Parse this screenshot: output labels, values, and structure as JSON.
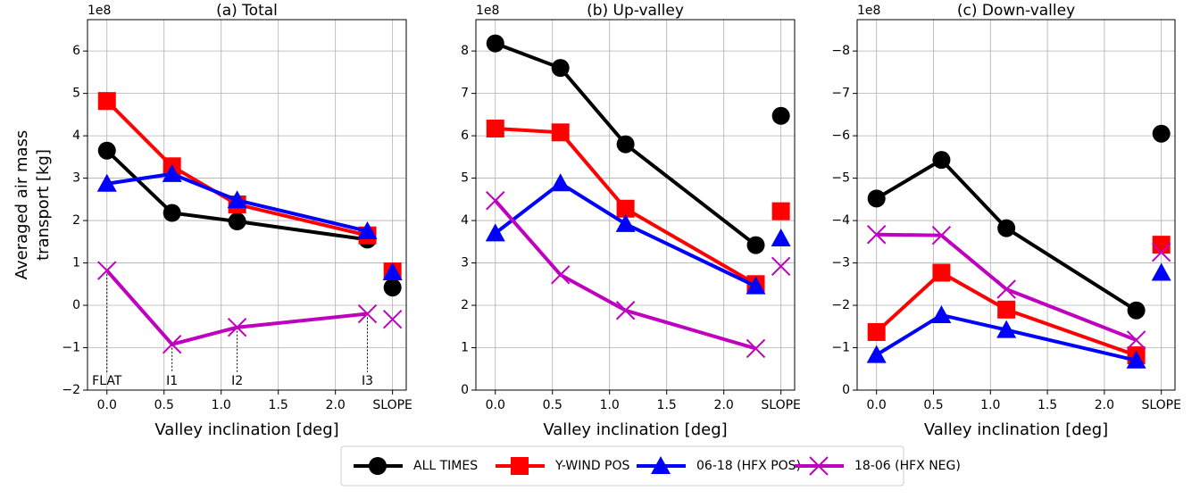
{
  "chart_data": [
    {
      "type": "line",
      "title": "(a) Total",
      "offset_label": "1e8",
      "xlabel": "Valley inclination [deg]",
      "ylabel": [
        "Averaged air mass",
        "transport [kg]"
      ],
      "x": [
        0,
        0.57,
        1.14,
        2.28
      ],
      "xlim": [
        -0.17,
        2.62
      ],
      "xticks": [
        {
          "value": 0,
          "label": "0.0"
        },
        {
          "value": 0.5,
          "label": "0.5"
        },
        {
          "value": 1,
          "label": "1.0"
        },
        {
          "value": 1.5,
          "label": "1.5"
        },
        {
          "value": 2,
          "label": "2.0"
        },
        {
          "value": 2.5,
          "label": "SLOPE"
        }
      ],
      "ylim": [
        -2,
        6.74
      ],
      "yticks": [
        {
          "value": -2,
          "label": "−2"
        },
        {
          "value": -1,
          "label": "−1"
        },
        0,
        1,
        2,
        3,
        4,
        5,
        6
      ],
      "annotations": [
        "FLAT",
        "I1",
        "I2",
        "I3"
      ],
      "grid": true,
      "series": [
        {
          "name": "ALL TIMES",
          "color": "#000000",
          "marker": "circle",
          "values": [
            3.65,
            2.18,
            1.98,
            1.55
          ],
          "slope_value": 0.42
        },
        {
          "name": "Y-WIND POS",
          "color": "#ff0000",
          "marker": "square",
          "values": [
            4.82,
            3.28,
            2.38,
            1.65
          ],
          "slope_value": 0.8
        },
        {
          "name": "06-18 (HFX POS)",
          "color": "#0000ff",
          "marker": "triangle",
          "values": [
            2.87,
            3.1,
            2.48,
            1.75
          ],
          "slope_value": 0.78
        },
        {
          "name": "18-06 (HFX NEG)",
          "color": "#bf00bf",
          "marker": "x",
          "values": [
            0.82,
            -0.92,
            -0.52,
            -0.2
          ],
          "slope_value": -0.33
        }
      ]
    },
    {
      "type": "line",
      "title": "(b) Up-valley",
      "offset_label": "1e8",
      "xlabel": "Valley inclination [deg]",
      "x": [
        0,
        0.57,
        1.14,
        2.28
      ],
      "xlim": [
        -0.17,
        2.62
      ],
      "xticks": [
        {
          "value": 0,
          "label": "0.0"
        },
        {
          "value": 0.5,
          "label": "0.5"
        },
        {
          "value": 1,
          "label": "1.0"
        },
        {
          "value": 1.5,
          "label": "1.5"
        },
        {
          "value": 2,
          "label": "2.0"
        },
        {
          "value": 2.5,
          "label": "SLOPE"
        }
      ],
      "ylim": [
        0,
        8.74
      ],
      "yticks": [
        0,
        1,
        2,
        3,
        4,
        5,
        6,
        7,
        8
      ],
      "grid": true,
      "series": [
        {
          "name": "ALL TIMES",
          "color": "#000000",
          "marker": "circle",
          "values": [
            8.18,
            7.6,
            5.8,
            3.42
          ],
          "slope_value": 6.47
        },
        {
          "name": "Y-WIND POS",
          "color": "#ff0000",
          "marker": "square",
          "values": [
            6.17,
            6.08,
            4.28,
            2.5
          ],
          "slope_value": 4.22
        },
        {
          "name": "06-18 (HFX POS)",
          "color": "#0000ff",
          "marker": "triangle",
          "values": [
            3.7,
            4.88,
            3.92,
            2.45
          ],
          "slope_value": 3.58
        },
        {
          "name": "18-06 (HFX NEG)",
          "color": "#bf00bf",
          "marker": "x",
          "values": [
            4.47,
            2.72,
            1.88,
            0.98
          ],
          "slope_value": 2.92
        }
      ]
    },
    {
      "type": "line",
      "title": "(c) Down-valley",
      "offset_label": "1e8",
      "xlabel": "Valley inclination [deg]",
      "x": [
        0,
        0.57,
        1.14,
        2.28
      ],
      "xlim": [
        -0.17,
        2.62
      ],
      "xticks": [
        {
          "value": 0,
          "label": "0.0"
        },
        {
          "value": 0.5,
          "label": "0.5"
        },
        {
          "value": 1,
          "label": "1.0"
        },
        {
          "value": 1.5,
          "label": "1.5"
        },
        {
          "value": 2,
          "label": "2.0"
        },
        {
          "value": 2.5,
          "label": "SLOPE"
        }
      ],
      "ylim": [
        0,
        -8.74
      ],
      "yticks": [
        0,
        {
          "value": -1,
          "label": "−1"
        },
        {
          "value": -2,
          "label": "−2"
        },
        {
          "value": -3,
          "label": "−3"
        },
        {
          "value": -4,
          "label": "−4"
        },
        {
          "value": -5,
          "label": "−5"
        },
        {
          "value": -6,
          "label": "−6"
        },
        {
          "value": -7,
          "label": "−7"
        },
        {
          "value": -8,
          "label": "−8"
        }
      ],
      "grid": true,
      "series": [
        {
          "name": "ALL TIMES",
          "color": "#000000",
          "marker": "circle",
          "values": [
            -4.52,
            -5.43,
            -3.82,
            -1.88
          ],
          "slope_value": -6.05
        },
        {
          "name": "Y-WIND POS",
          "color": "#ff0000",
          "marker": "square",
          "values": [
            -1.37,
            -2.77,
            -1.9,
            -0.82
          ],
          "slope_value": -3.43
        },
        {
          "name": "06-18 (HFX POS)",
          "color": "#0000ff",
          "marker": "triangle",
          "values": [
            -0.83,
            -1.77,
            -1.42,
            -0.7
          ],
          "slope_value": -2.77
        },
        {
          "name": "18-06 (HFX NEG)",
          "color": "#bf00bf",
          "marker": "x",
          "values": [
            -3.67,
            -3.65,
            -2.38,
            -1.18
          ],
          "slope_value": -3.25
        }
      ]
    }
  ]
}
